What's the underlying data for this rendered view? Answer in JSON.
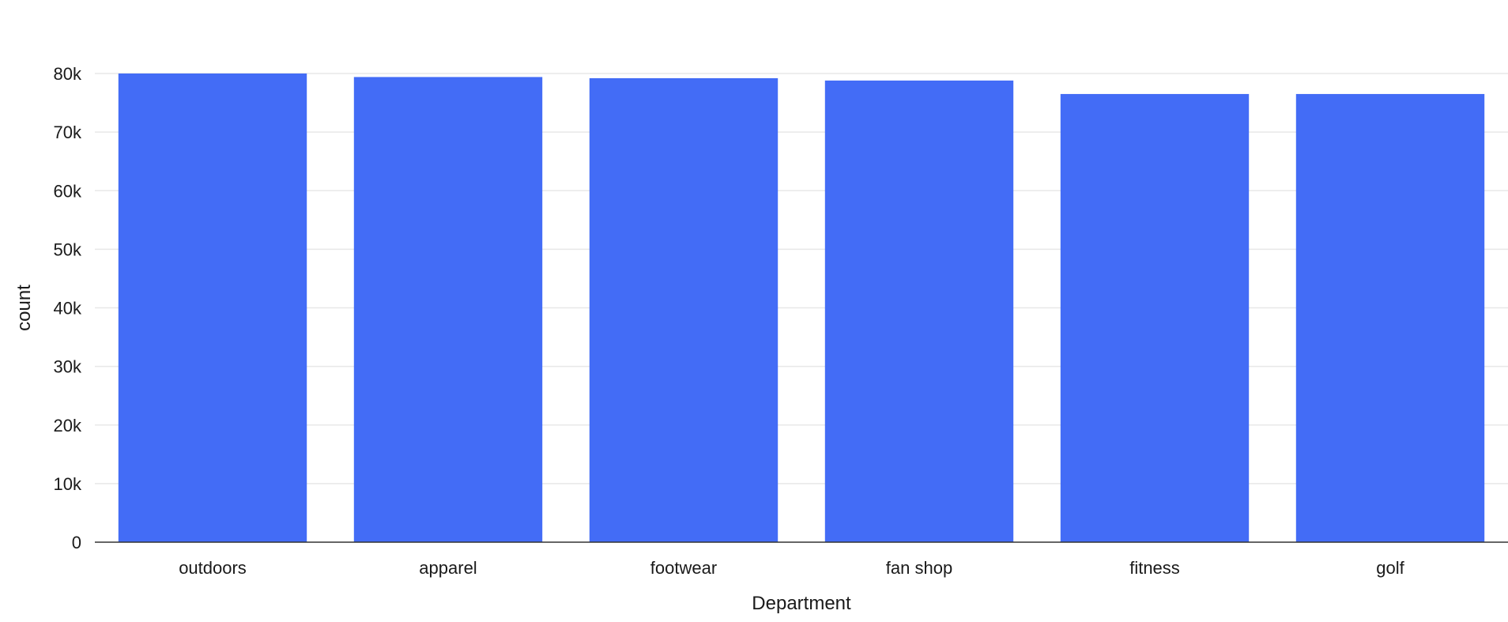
{
  "chart_data": {
    "type": "bar",
    "xlabel": "Department",
    "ylabel": "count",
    "categories": [
      "outdoors",
      "apparel",
      "footwear",
      "fan shop",
      "fitness",
      "golf"
    ],
    "values": [
      80000,
      79400,
      79200,
      78800,
      76500,
      76500
    ],
    "ylim": [
      0,
      80000
    ],
    "yticks": [
      0,
      10000,
      20000,
      30000,
      40000,
      50000,
      60000,
      70000,
      80000
    ],
    "ytick_labels": [
      "0",
      "10k",
      "20k",
      "30k",
      "40k",
      "50k",
      "60k",
      "70k",
      "80k"
    ],
    "grid": true,
    "legend": "none",
    "bar_color": "#436cf6",
    "grid_color": "#e8e8e8",
    "axis_color": "#333333"
  }
}
